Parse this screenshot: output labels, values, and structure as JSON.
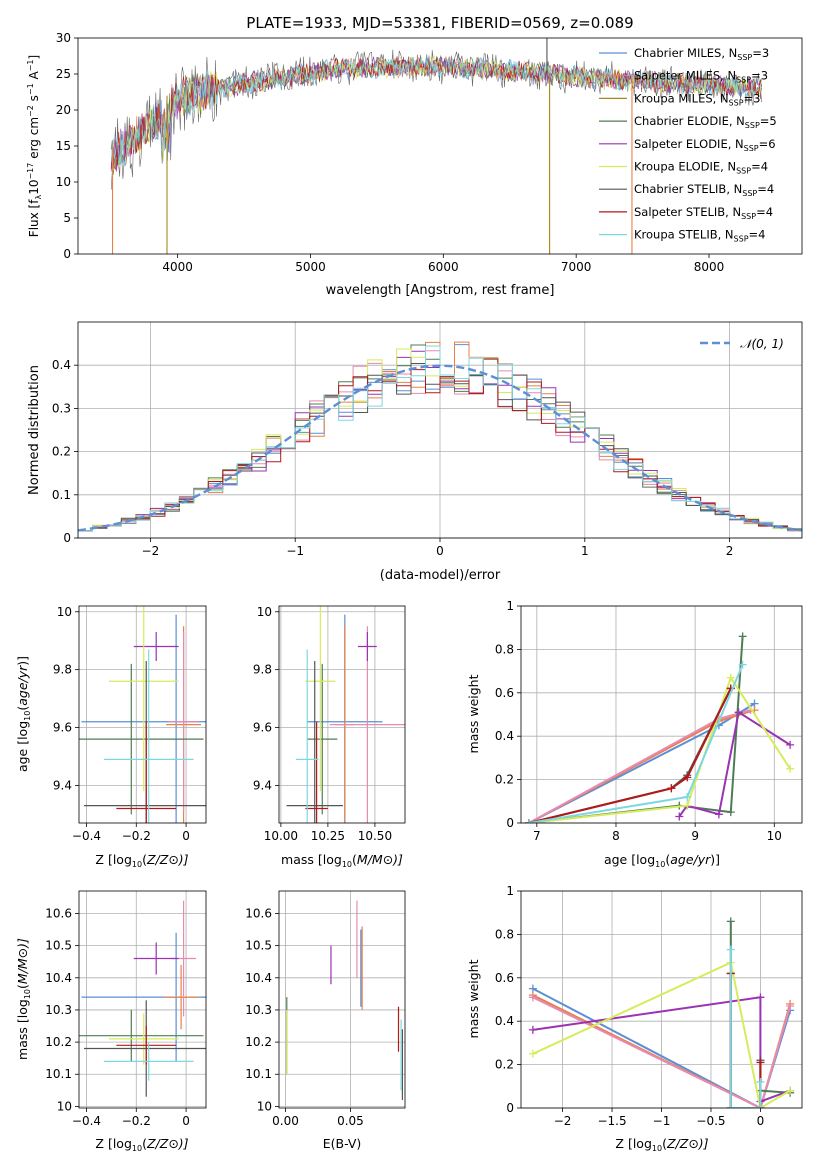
{
  "figure_title": "PLATE=1933, MJD=53381, FIBERID=0569, z=0.089",
  "colors": {
    "Chabrier MILES": "#5b8fd6",
    "Salpeter MILES": "#e8804a",
    "Kroupa MILES": "#a6891a",
    "Chabrier ELODIE": "#4e7d55",
    "Salpeter ELODIE": "#9a33b3",
    "Kroupa ELODIE": "#d6ec5a",
    "Chabrier STELIB": "#555555",
    "Salpeter STELIB": "#b21a1a",
    "Kroupa STELIB": "#7ed7e0",
    "extra_pink": "#e78ab0",
    "normal_curve": "#5b8fd6"
  },
  "chart_data": [
    {
      "id": "spectrum",
      "type": "line",
      "title": "PLATE=1933, MJD=53381, FIBERID=0569, z=0.089",
      "xlabel": "wavelength [Angstrom, rest frame]",
      "ylabel_parts": [
        "Flux [f",
        "λ",
        "10",
        "−17",
        " erg cm",
        "−2",
        " s",
        "−1",
        " A",
        "−1",
        "]"
      ],
      "xlim": [
        3250,
        8700
      ],
      "ylim": [
        0,
        30
      ],
      "xticks": [
        4000,
        5000,
        6000,
        7000,
        8000
      ],
      "yticks": [
        0,
        5,
        10,
        15,
        20,
        25,
        30
      ],
      "grid": false,
      "legend_position": "right",
      "legend": [
        {
          "label": "Chabrier MILES, N",
          "sub": "SSP",
          "suffix": "=3",
          "color": "#5b8fd6"
        },
        {
          "label": "Salpeter MILES, N",
          "sub": "SSP",
          "suffix": "=3",
          "color": "#e8804a"
        },
        {
          "label": "Kroupa MILES, N",
          "sub": "SSP",
          "suffix": "=3",
          "color": "#a6891a"
        },
        {
          "label": "Chabrier ELODIE, N",
          "sub": "SSP",
          "suffix": "=5",
          "color": "#4e7d55"
        },
        {
          "label": "Salpeter ELODIE, N",
          "sub": "SSP",
          "suffix": "=6",
          "color": "#9a33b3"
        },
        {
          "label": "Kroupa ELODIE, N",
          "sub": "SSP",
          "suffix": "=4",
          "color": "#d6ec5a"
        },
        {
          "label": "Chabrier STELIB, N",
          "sub": "SSP",
          "suffix": "=4",
          "color": "#555555"
        },
        {
          "label": "Salpeter STELIB, N",
          "sub": "SSP",
          "suffix": "=4",
          "color": "#b21a1a"
        },
        {
          "label": "Kroupa STELIB, N",
          "sub": "SSP",
          "suffix": "=4",
          "color": "#7ed7e0"
        }
      ],
      "continuum": {
        "x": [
          3500,
          3700,
          3900,
          4000,
          4300,
          4600,
          5000,
          5300,
          5600,
          6000,
          6400,
          6800,
          7200,
          7600,
          8000,
          8400
        ],
        "y": [
          13.5,
          16.5,
          19.5,
          21.5,
          23.0,
          24.0,
          25.2,
          25.8,
          26.0,
          26.0,
          25.6,
          25.0,
          24.3,
          23.8,
          23.5,
          23.0
        ]
      },
      "spikes": [
        {
          "x": 3510,
          "bottom": 0,
          "top": 15.5,
          "color": "#e8804a"
        },
        {
          "x": 3920,
          "bottom": 0,
          "top": 22.0,
          "color": "#a6891a"
        },
        {
          "x": 6800,
          "bottom": 0,
          "top": 25.0,
          "color": "#a6891a"
        },
        {
          "x": 7420,
          "bottom": 0,
          "top": 25.0,
          "color": "#e8804a"
        },
        {
          "x": 6780,
          "bottom": 25,
          "top": 30,
          "color": "#555555"
        }
      ]
    },
    {
      "id": "residuals",
      "type": "histogram",
      "xlabel": "(data-model)/error",
      "ylabel": "Normed distribution",
      "xlim": [
        -2.5,
        2.5
      ],
      "ylim": [
        0,
        0.5
      ],
      "xticks": [
        -2,
        -1,
        0,
        1,
        2
      ],
      "yticks": [
        0.0,
        0.1,
        0.2,
        0.3,
        0.4
      ],
      "grid": true,
      "legend_position": "top-right",
      "legend_label": "𝒩(0, 1)",
      "bin_width": 0.1,
      "curve": {
        "name": "𝒩(0, 1)",
        "mean": 0,
        "std": 1
      }
    },
    {
      "id": "age_vs_Z",
      "type": "errorbar",
      "xlabel_parts": [
        "Z [log",
        "10",
        "(",
        "Z/Z",
        "⊙",
        ")]"
      ],
      "ylabel_parts": [
        "age  [log",
        "10",
        "(",
        "age/yr",
        ")]"
      ],
      "xlim": [
        -0.43,
        0.08
      ],
      "ylim": [
        9.27,
        10.02
      ],
      "xticks": [
        -0.4,
        -0.2,
        0.0
      ],
      "yticks": [
        9.4,
        9.6,
        9.8,
        10.0
      ],
      "grid": true,
      "points": [
        {
          "x": -0.04,
          "xerr": 0.38,
          "y": 9.62,
          "yerr": 0.37,
          "color": "#5b8fd6"
        },
        {
          "x": -0.01,
          "xerr": 0.07,
          "y": 9.61,
          "yerr": 0.34,
          "color": "#e8804a"
        },
        {
          "x": -0.01,
          "xerr": 0.06,
          "y": 9.62,
          "yerr": 0.31,
          "color": "#e78ab0"
        },
        {
          "x": -0.22,
          "xerr": 0.29,
          "y": 9.56,
          "yerr": 0.26,
          "color": "#4e7d55"
        },
        {
          "x": -0.12,
          "xerr": 0.09,
          "y": 9.88,
          "yerr": 0.05,
          "color": "#9a33b3"
        },
        {
          "x": -0.17,
          "xerr": 0.14,
          "y": 9.76,
          "yerr": 0.38,
          "color": "#d6ec5a"
        },
        {
          "x": -0.16,
          "xerr": 0.25,
          "y": 9.33,
          "yerr": 0.5,
          "color": "#555555"
        },
        {
          "x": -0.16,
          "xerr": 0.12,
          "y": 9.32,
          "yerr": 0.3,
          "color": "#b21a1a"
        },
        {
          "x": -0.15,
          "xerr": 0.18,
          "y": 9.49,
          "yerr": 0.38,
          "color": "#7ed7e0"
        }
      ]
    },
    {
      "id": "age_vs_mass",
      "type": "errorbar",
      "xlabel_parts": [
        "mass [log",
        "10",
        "(",
        "M/M",
        "⊙",
        ")]"
      ],
      "xlim": [
        9.99,
        10.66
      ],
      "ylim": [
        9.27,
        10.02
      ],
      "xticks": [
        10.0,
        10.25,
        10.5
      ],
      "xtick_labels": [
        "10.00",
        "10.25",
        "10.50"
      ],
      "yticks": [
        9.4,
        9.6,
        9.8,
        10.0
      ],
      "grid": true,
      "points": [
        {
          "x": 10.34,
          "xerr": 0.2,
          "y": 9.62,
          "yerr": 0.37,
          "color": "#5b8fd6"
        },
        {
          "x": 10.34,
          "xerr": 0.05,
          "y": 9.61,
          "yerr": 0.34,
          "color": "#e8804a"
        },
        {
          "x": 10.46,
          "xerr": 0.2,
          "y": 9.61,
          "yerr": 0.34,
          "color": "#e78ab0"
        },
        {
          "x": 10.22,
          "xerr": 0.08,
          "y": 9.56,
          "yerr": 0.26,
          "color": "#4e7d55"
        },
        {
          "x": 10.46,
          "xerr": 0.05,
          "y": 9.88,
          "yerr": 0.05,
          "color": "#9a33b3"
        },
        {
          "x": 10.21,
          "xerr": 0.08,
          "y": 9.76,
          "yerr": 0.38,
          "color": "#d6ec5a"
        },
        {
          "x": 10.18,
          "xerr": 0.15,
          "y": 9.33,
          "yerr": 0.5,
          "color": "#555555"
        },
        {
          "x": 10.19,
          "xerr": 0.06,
          "y": 9.32,
          "yerr": 0.3,
          "color": "#b21a1a"
        },
        {
          "x": 10.14,
          "xerr": 0.06,
          "y": 9.49,
          "yerr": 0.38,
          "color": "#7ed7e0"
        }
      ]
    },
    {
      "id": "massweight_vs_age",
      "type": "line",
      "xlabel_parts": [
        "age  [log",
        "10",
        "(",
        "age/yr",
        ")]"
      ],
      "ylabel": "mass weight",
      "xlim": [
        6.8,
        10.35
      ],
      "ylim": [
        0.0,
        1.0
      ],
      "xticks": [
        7,
        8,
        9,
        10
      ],
      "yticks": [
        0.0,
        0.2,
        0.4,
        0.6,
        0.8,
        1.0
      ],
      "grid": true,
      "series": [
        {
          "color": "#5b8fd6",
          "x": [
            6.9,
            9.3,
            9.75
          ],
          "y": [
            0.0,
            0.45,
            0.55
          ]
        },
        {
          "color": "#e8804a",
          "x": [
            6.9,
            9.3,
            9.75
          ],
          "y": [
            0.0,
            0.47,
            0.52
          ]
        },
        {
          "color": "#e78ab0",
          "x": [
            6.9,
            9.3,
            9.7
          ],
          "y": [
            0.0,
            0.48,
            0.52
          ]
        },
        {
          "color": "#4e7d55",
          "x": [
            6.9,
            8.8,
            9.45,
            9.6
          ],
          "y": [
            0.0,
            0.08,
            0.05,
            0.86
          ]
        },
        {
          "color": "#9a33b3",
          "x": [
            8.8,
            8.9,
            9.3,
            9.55,
            10.2
          ],
          "y": [
            0.03,
            0.08,
            0.04,
            0.51,
            0.36
          ]
        },
        {
          "color": "#d6ec5a",
          "x": [
            6.9,
            8.9,
            9.45,
            10.2
          ],
          "y": [
            0.0,
            0.08,
            0.67,
            0.25
          ]
        },
        {
          "color": "#555555",
          "x": [
            6.9,
            8.7,
            8.9,
            9.45
          ],
          "y": [
            0.0,
            0.16,
            0.22,
            0.62
          ]
        },
        {
          "color": "#b21a1a",
          "x": [
            6.9,
            8.7,
            8.9,
            9.45
          ],
          "y": [
            0.0,
            0.16,
            0.21,
            0.62
          ]
        },
        {
          "color": "#7ed7e0",
          "x": [
            6.9,
            8.9,
            9.6
          ],
          "y": [
            0.0,
            0.12,
            0.73
          ]
        }
      ]
    },
    {
      "id": "mass_vs_Z",
      "type": "errorbar",
      "xlabel_parts": [
        "Z [log",
        "10",
        "(",
        "Z/Z",
        "⊙",
        ")]"
      ],
      "ylabel_parts": [
        "mass [log",
        "10",
        "(",
        "M/M",
        "⊙",
        ")]"
      ],
      "xlim": [
        -0.43,
        0.08
      ],
      "ylim": [
        9.995,
        10.67
      ],
      "xticks": [
        -0.4,
        -0.2,
        0.0
      ],
      "yticks": [
        10.0,
        10.1,
        10.2,
        10.3,
        10.4,
        10.5,
        10.6
      ],
      "grid": true,
      "points": [
        {
          "x": -0.04,
          "xerr": 0.38,
          "y": 10.34,
          "yerr": 0.2,
          "color": "#5b8fd6"
        },
        {
          "x": -0.02,
          "xerr": 0.07,
          "y": 10.34,
          "yerr": 0.1,
          "color": "#e8804a"
        },
        {
          "x": -0.01,
          "xerr": 0.05,
          "y": 10.46,
          "yerr": 0.18,
          "color": "#e78ab0"
        },
        {
          "x": -0.22,
          "xerr": 0.29,
          "y": 10.22,
          "yerr": 0.08,
          "color": "#4e7d55"
        },
        {
          "x": -0.12,
          "xerr": 0.09,
          "y": 10.46,
          "yerr": 0.05,
          "color": "#9a33b3"
        },
        {
          "x": -0.17,
          "xerr": 0.14,
          "y": 10.21,
          "yerr": 0.08,
          "color": "#d6ec5a"
        },
        {
          "x": -0.16,
          "xerr": 0.25,
          "y": 10.18,
          "yerr": 0.15,
          "color": "#555555"
        },
        {
          "x": -0.16,
          "xerr": 0.12,
          "y": 10.19,
          "yerr": 0.06,
          "color": "#b21a1a"
        },
        {
          "x": -0.15,
          "xerr": 0.18,
          "y": 10.14,
          "yerr": 0.06,
          "color": "#7ed7e0"
        }
      ]
    },
    {
      "id": "mass_vs_EBV",
      "type": "errorbar",
      "xlabel": "E(B-V)",
      "xlim": [
        -0.005,
        0.092
      ],
      "ylim": [
        9.995,
        10.67
      ],
      "xticks": [
        0.0,
        0.05
      ],
      "xtick_labels": [
        "0.00",
        "0.05"
      ],
      "yticks": [
        10.0,
        10.1,
        10.2,
        10.3,
        10.4,
        10.5,
        10.6
      ],
      "grid": true,
      "points": [
        {
          "x": 0.058,
          "xerr": 0,
          "y": 10.43,
          "yerr": 0.12,
          "color": "#5b8fd6"
        },
        {
          "x": 0.059,
          "xerr": 0,
          "y": 10.43,
          "yerr": 0.13,
          "color": "#e8804a"
        },
        {
          "x": 0.055,
          "xerr": 0,
          "y": 10.52,
          "yerr": 0.12,
          "color": "#e78ab0"
        },
        {
          "x": 0.001,
          "xerr": 0,
          "y": 10.22,
          "yerr": 0.12,
          "color": "#4e7d55"
        },
        {
          "x": 0.035,
          "xerr": 0,
          "y": 10.44,
          "yerr": 0.06,
          "color": "#9a33b3"
        },
        {
          "x": 0.001,
          "xerr": 0,
          "y": 10.2,
          "yerr": 0.1,
          "color": "#d6ec5a"
        },
        {
          "x": 0.09,
          "xerr": 0,
          "y": 10.13,
          "yerr": 0.11,
          "color": "#555555"
        },
        {
          "x": 0.087,
          "xerr": 0,
          "y": 10.24,
          "yerr": 0.07,
          "color": "#b21a1a"
        },
        {
          "x": 0.089,
          "xerr": 0,
          "y": 10.16,
          "yerr": 0.11,
          "color": "#7ed7e0"
        }
      ]
    },
    {
      "id": "massweight_vs_Z",
      "type": "line",
      "xlabel_parts": [
        "Z [log",
        "10",
        "(",
        "Z/Z",
        "⊙",
        ")]"
      ],
      "ylabel": "mass weight",
      "xlim": [
        -2.42,
        0.42
      ],
      "ylim": [
        0.0,
        1.0
      ],
      "xticks": [
        -2.0,
        -1.5,
        -1.0,
        -0.5,
        0.0
      ],
      "yticks": [
        0.0,
        0.2,
        0.4,
        0.6,
        0.8,
        1.0
      ],
      "grid": true,
      "series": [
        {
          "color": "#5b8fd6",
          "x": [
            -2.3,
            0.0,
            0.3
          ],
          "y": [
            0.55,
            0.0,
            0.45
          ]
        },
        {
          "color": "#e8804a",
          "x": [
            -2.3,
            0.0,
            0.3
          ],
          "y": [
            0.52,
            0.0,
            0.48
          ]
        },
        {
          "color": "#e78ab0",
          "x": [
            -2.3,
            0.0,
            0.3
          ],
          "y": [
            0.51,
            0.0,
            0.47
          ]
        },
        {
          "color": "#4e7d55",
          "x": [
            -0.3,
            -0.3,
            0.0,
            0.0,
            0.3
          ],
          "y": [
            0.86,
            0.0,
            0.0,
            0.08,
            0.07
          ]
        },
        {
          "color": "#9a33b3",
          "x": [
            -2.3,
            0.0,
            0.0,
            0.3
          ],
          "y": [
            0.36,
            0.51,
            0.03,
            0.08
          ]
        },
        {
          "color": "#d6ec5a",
          "x": [
            -2.3,
            -0.3,
            0.0,
            0.3
          ],
          "y": [
            0.25,
            0.67,
            0.0,
            0.08
          ]
        },
        {
          "color": "#555555",
          "x": [
            -0.3,
            -0.3,
            0.0,
            0.0
          ],
          "y": [
            0.62,
            0.0,
            0.0,
            0.22
          ]
        },
        {
          "color": "#b21a1a",
          "x": [
            -0.3,
            -0.3,
            0.0,
            0.0
          ],
          "y": [
            0.62,
            0.0,
            0.0,
            0.21
          ]
        },
        {
          "color": "#7ed7e0",
          "x": [
            -0.3,
            -0.3,
            0.0,
            0.0
          ],
          "y": [
            0.73,
            0.0,
            0.0,
            0.12
          ]
        }
      ]
    }
  ]
}
